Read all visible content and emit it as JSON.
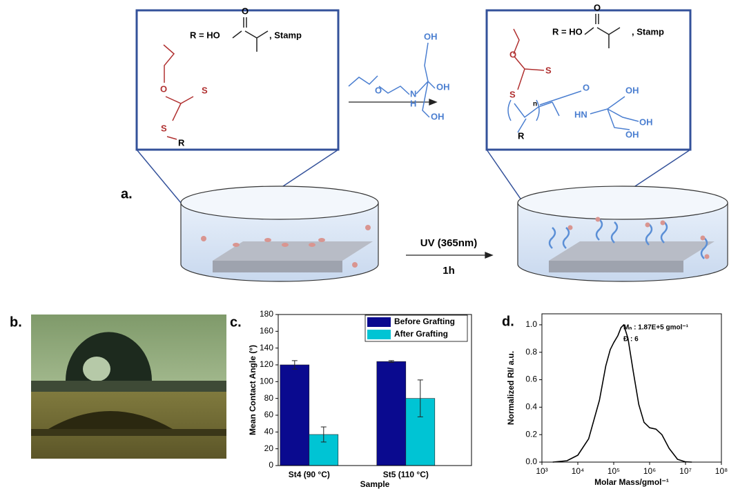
{
  "scheme": {
    "panel_label": "a.",
    "left_box": {
      "r_group": "R = HO",
      "r_suffix": ", Stamp",
      "acid_o": "O",
      "atoms": [
        "O",
        "S",
        "S",
        "R"
      ]
    },
    "monomer": {
      "atoms": [
        "O",
        "N",
        "H",
        "OH",
        "OH",
        "OH"
      ]
    },
    "right_box": {
      "r_group": "R = HO",
      "r_suffix": ", Stamp",
      "acid_o": "O",
      "atoms": [
        "O",
        "S",
        "S",
        "n",
        "R"
      ],
      "polymer_atoms": [
        "O",
        "HN",
        "OH",
        "OH",
        "OH"
      ]
    },
    "condition": [
      "UV (365nm)",
      "1h"
    ]
  },
  "photo": {
    "panel_label": "b."
  },
  "chart_data": [
    {
      "type": "bar",
      "panel_label": "c.",
      "x_label": "Sample",
      "y_label": "Mean Contact Angle (°)",
      "categories": [
        "St4 (90 °C)",
        "St5 (110 °C)"
      ],
      "series": [
        {
          "name": "Before Grafting",
          "color": "#0a0a8f",
          "values": [
            120,
            124
          ],
          "errors": [
            5,
            1
          ]
        },
        {
          "name": "After Grafting",
          "color": "#00c4d4",
          "values": [
            37,
            80
          ],
          "errors": [
            9,
            22
          ]
        }
      ],
      "ylim": [
        0,
        180
      ],
      "yticks": [
        0,
        20,
        40,
        60,
        80,
        100,
        120,
        140,
        160,
        180
      ],
      "legend": "top-right"
    },
    {
      "type": "line",
      "panel_label": "d.",
      "x_label": "Molar Mass/gmol⁻¹",
      "y_label": "Normalized RI/ a.u.",
      "annotations": [
        "Mₙ : 1.87E+5  gmol⁻¹",
        "Đ  : 6"
      ],
      "xscale": "log",
      "color": "#000000",
      "x": [
        2000,
        5000,
        10000,
        20000,
        40000,
        60000,
        80000,
        100000,
        130000,
        160000,
        190000,
        250000,
        350000,
        500000,
        700000,
        1000000,
        1500000,
        2200000,
        3500000,
        6000000,
        10000000,
        15000000
      ],
      "values": [
        0,
        0.01,
        0.05,
        0.17,
        0.45,
        0.7,
        0.82,
        0.87,
        0.92,
        0.98,
        1.0,
        0.9,
        0.66,
        0.42,
        0.29,
        0.25,
        0.24,
        0.2,
        0.1,
        0.02,
        0.002,
        0
      ],
      "xlim": [
        1000,
        100000000
      ],
      "xticks": [
        {
          "value": 1000,
          "label": "10³"
        },
        {
          "value": 10000,
          "label": "10⁴"
        },
        {
          "value": 100000,
          "label": "10⁵"
        },
        {
          "value": 1000000,
          "label": "10⁶"
        },
        {
          "value": 10000000,
          "label": "10⁷"
        },
        {
          "value": 100000000,
          "label": "10⁸"
        }
      ],
      "ylim": [
        0,
        1.08
      ],
      "yticks": [
        {
          "value": 0,
          "label": "0.0"
        },
        0.2,
        0.4,
        0.6,
        0.8,
        {
          "value": 1,
          "label": "1.0"
        }
      ]
    }
  ]
}
